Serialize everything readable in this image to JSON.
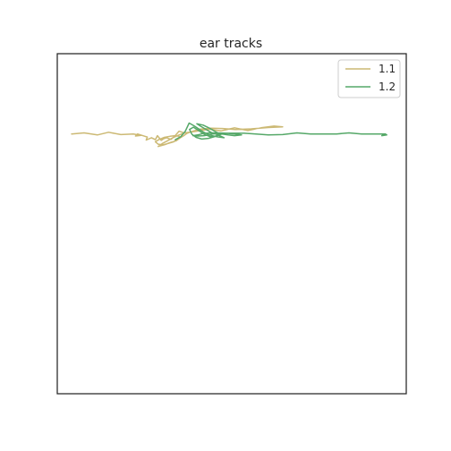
{
  "chart_data": {
    "type": "line",
    "title": "ear tracks",
    "xlabel": "",
    "ylabel": "",
    "xlim": [
      0,
      1000
    ],
    "ylim": [
      1000,
      0
    ],
    "grid": false,
    "legend_position": "top-right",
    "colors": {
      "axes_edge": "#262626",
      "background": "#ffffff"
    },
    "series": [
      {
        "name": "1.1",
        "color": "#ccb974",
        "points": [
          [
            41,
            236
          ],
          [
            77,
            233
          ],
          [
            115,
            239
          ],
          [
            147,
            231
          ],
          [
            182,
            238
          ],
          [
            218,
            236
          ],
          [
            240,
            240
          ],
          [
            224,
            242
          ],
          [
            230,
            236
          ],
          [
            251,
            243
          ],
          [
            258,
            245
          ],
          [
            255,
            254
          ],
          [
            270,
            247
          ],
          [
            281,
            253
          ],
          [
            287,
            241
          ],
          [
            298,
            255
          ],
          [
            305,
            250
          ],
          [
            313,
            247
          ],
          [
            326,
            252
          ],
          [
            337,
            242
          ],
          [
            349,
            228
          ],
          [
            361,
            232
          ],
          [
            354,
            246
          ],
          [
            341,
            256
          ],
          [
            324,
            261
          ],
          [
            309,
            267
          ],
          [
            289,
            273
          ],
          [
            303,
            263
          ],
          [
            318,
            255
          ],
          [
            330,
            248
          ],
          [
            349,
            239
          ],
          [
            365,
            233
          ],
          [
            393,
            229
          ],
          [
            436,
            222
          ],
          [
            469,
            227
          ],
          [
            508,
            218
          ],
          [
            546,
            226
          ],
          [
            584,
            218
          ],
          [
            621,
            213
          ],
          [
            646,
            215
          ],
          [
            605,
            217
          ],
          [
            556,
            221
          ],
          [
            510,
            223
          ],
          [
            474,
            220
          ],
          [
            440,
            219
          ],
          [
            408,
            222
          ],
          [
            389,
            228
          ],
          [
            372,
            234
          ],
          [
            361,
            242
          ],
          [
            348,
            250
          ],
          [
            334,
            259
          ],
          [
            318,
            264
          ],
          [
            302,
            268
          ],
          [
            289,
            266
          ],
          [
            281,
            259
          ],
          [
            292,
            252
          ],
          [
            307,
            246
          ],
          [
            323,
            243
          ],
          [
            338,
            241
          ],
          [
            349,
            243
          ]
        ]
      },
      {
        "name": "1.2",
        "color": "#55a868",
        "points": [
          [
            338,
            253
          ],
          [
            354,
            244
          ],
          [
            367,
            228
          ],
          [
            378,
            204
          ],
          [
            393,
            213
          ],
          [
            405,
            221
          ],
          [
            418,
            230
          ],
          [
            436,
            239
          ],
          [
            456,
            244
          ],
          [
            478,
            247
          ],
          [
            461,
            239
          ],
          [
            440,
            231
          ],
          [
            425,
            222
          ],
          [
            410,
            213
          ],
          [
            400,
            206
          ],
          [
            418,
            210
          ],
          [
            436,
            219
          ],
          [
            451,
            228
          ],
          [
            466,
            236
          ],
          [
            451,
            244
          ],
          [
            433,
            249
          ],
          [
            414,
            251
          ],
          [
            398,
            246
          ],
          [
            386,
            237
          ],
          [
            379,
            223
          ],
          [
            390,
            216
          ],
          [
            405,
            226
          ],
          [
            421,
            237
          ],
          [
            438,
            244
          ],
          [
            455,
            242
          ],
          [
            472,
            236
          ],
          [
            490,
            239
          ],
          [
            508,
            241
          ],
          [
            528,
            239
          ],
          [
            508,
            236
          ],
          [
            484,
            234
          ],
          [
            460,
            233
          ],
          [
            439,
            233
          ],
          [
            417,
            235
          ],
          [
            402,
            239
          ],
          [
            389,
            241
          ],
          [
            405,
            242
          ],
          [
            421,
            241
          ],
          [
            445,
            236
          ],
          [
            474,
            234
          ],
          [
            503,
            234
          ],
          [
            536,
            234
          ],
          [
            569,
            236
          ],
          [
            605,
            239
          ],
          [
            646,
            238
          ],
          [
            687,
            233
          ],
          [
            726,
            236
          ],
          [
            764,
            236
          ],
          [
            800,
            236
          ],
          [
            836,
            233
          ],
          [
            872,
            236
          ],
          [
            900,
            236
          ],
          [
            926,
            236
          ],
          [
            940,
            236
          ],
          [
            944,
            239
          ],
          [
            930,
            241
          ],
          [
            940,
            236
          ]
        ]
      }
    ]
  }
}
